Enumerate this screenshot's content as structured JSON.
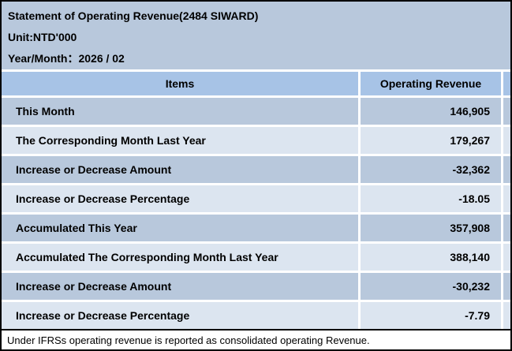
{
  "page": {
    "title": "Statement of Operating Revenue(2484 SIWARD)",
    "unit": "Unit:NTD'000",
    "period": "Year/Month：2026 / 02"
  },
  "table": {
    "columns": {
      "items": "Items",
      "value": "Operating Revenue"
    },
    "rows": [
      {
        "item": "This Month",
        "value": "146,905"
      },
      {
        "item": "The Corresponding Month Last Year",
        "value": "179,267"
      },
      {
        "item": "Increase or Decrease Amount",
        "value": "-32,362"
      },
      {
        "item": "Increase or Decrease Percentage",
        "value": "-18.05"
      },
      {
        "item": "Accumulated This Year",
        "value": "357,908"
      },
      {
        "item": "Accumulated The Corresponding Month Last Year",
        "value": "388,140"
      },
      {
        "item": "Increase or Decrease Amount",
        "value": "-30,232"
      },
      {
        "item": "Increase or Decrease Percentage",
        "value": "-7.79"
      }
    ]
  },
  "footnote": "Under IFRSs operating revenue is reported as consolidated operating Revenue.",
  "colors": {
    "title_block_bg": "#b8c8dc",
    "table_header_bg": "#a7c3e6",
    "row_dark_bg": "#b8c8dc",
    "row_light_bg": "#dce5f0",
    "border": "#000000",
    "text": "#000000",
    "footnote_bg": "#ffffff"
  }
}
